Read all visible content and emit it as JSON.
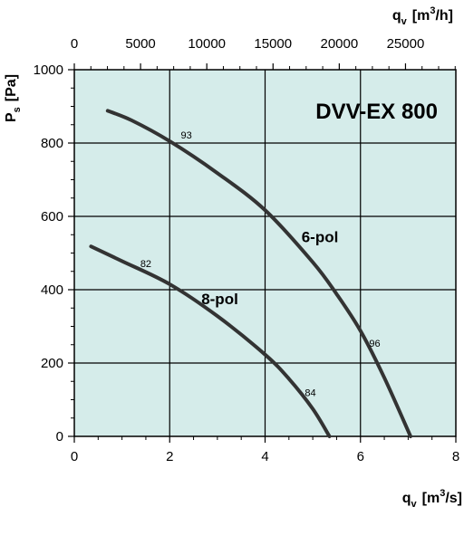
{
  "chart_data": {
    "type": "line",
    "title": "DVV-EX 800",
    "background_color": "#d5ecea",
    "curve_color": "#333333",
    "grid": true,
    "x_bottom": {
      "label_main": "q",
      "label_sub": "v",
      "label_unit": "[m",
      "label_sup": "3",
      "label_unit_end": "/s]",
      "ticks": [
        "0",
        "2",
        "4",
        "6",
        "8"
      ],
      "range": [
        0,
        8
      ]
    },
    "x_top": {
      "label_main": "q",
      "label_sub": "v",
      "label_unit": "[m",
      "label_sup": "3",
      "label_unit_end": "/h]",
      "ticks": [
        "0",
        "5000",
        "10000",
        "15000",
        "20000",
        "25000"
      ],
      "range": [
        0,
        28800
      ]
    },
    "y": {
      "label_main": "P",
      "label_sub": "s",
      "label_unit": "[Pa]",
      "ticks": [
        "0",
        "200",
        "400",
        "600",
        "800",
        "1000"
      ],
      "range": [
        0,
        1000
      ]
    },
    "series": [
      {
        "name": "6-pol",
        "x": [
          0.7,
          1.2,
          2.0,
          3.0,
          4.0,
          5.0,
          5.5,
          6.0,
          6.5,
          7.05
        ],
        "y": [
          888,
          862,
          805,
          718,
          617,
          475,
          388,
          288,
          160,
          0
        ]
      },
      {
        "name": "8-pol",
        "x": [
          0.35,
          1.0,
          2.0,
          3.0,
          4.0,
          4.5,
          5.0,
          5.35
        ],
        "y": [
          518,
          478,
          415,
          328,
          223,
          157,
          75,
          0
        ]
      }
    ],
    "efficiency_labels": [
      {
        "text": "93",
        "x": 2.35,
        "y": 812
      },
      {
        "text": "96",
        "x": 6.3,
        "y": 245
      },
      {
        "text": "82",
        "x": 1.5,
        "y": 462
      },
      {
        "text": "84",
        "x": 4.95,
        "y": 110
      }
    ],
    "series_labels": [
      {
        "text": "6-pol",
        "x": 5.15,
        "y": 530
      },
      {
        "text": "8-pol",
        "x": 3.05,
        "y": 360
      }
    ]
  }
}
